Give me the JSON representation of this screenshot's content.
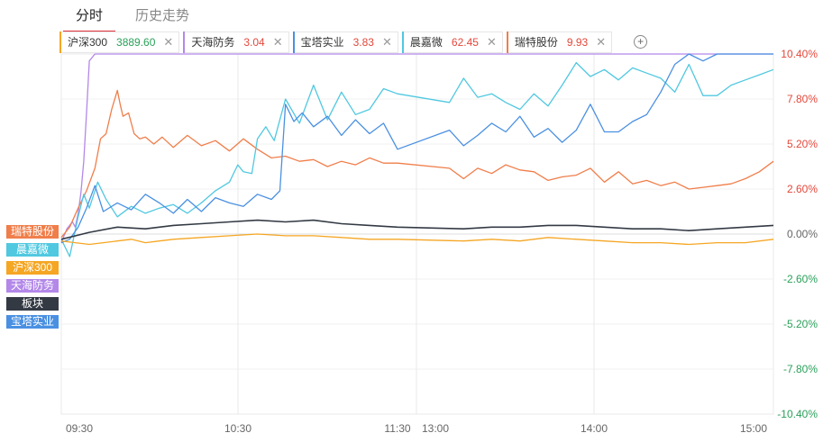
{
  "tabs": [
    {
      "label": "分时",
      "active": true
    },
    {
      "label": "历史走势",
      "active": false
    }
  ],
  "stocks": [
    {
      "name": "沪深300",
      "value": "3889.60",
      "color": "#f5a623",
      "value_color": "#2aa05a"
    },
    {
      "name": "天海防务",
      "value": "3.04",
      "color": "#b388e9",
      "value_color": "#e3473a"
    },
    {
      "name": "宝塔实业",
      "value": "3.83",
      "color": "#4a90e2",
      "value_color": "#e3473a"
    },
    {
      "name": "晨嘉微",
      "value": "62.45",
      "color": "#50c8e0",
      "value_color": "#e3473a"
    },
    {
      "name": "瑞特股份",
      "value": "9.93",
      "color": "#f07e4a",
      "value_color": "#e3473a"
    }
  ],
  "icons": {
    "close": "close-icon",
    "add": "add-circle-icon"
  },
  "legend": [
    {
      "label": "瑞特股份",
      "color": "#f07e4a"
    },
    {
      "label": "晨嘉微",
      "color": "#50c8e0"
    },
    {
      "label": "沪深300",
      "color": "#f5a623"
    },
    {
      "label": "天海防务",
      "color": "#b388e9"
    },
    {
      "label": "板块",
      "color": "#333a44"
    },
    {
      "label": "宝塔实业",
      "color": "#4a90e2"
    }
  ],
  "chart_data": {
    "type": "line",
    "x_ticks": [
      "09:30",
      "10:30",
      "11:30",
      "13:00",
      "14:00",
      "15:00"
    ],
    "y_ticks": [
      "10.40%",
      "7.80%",
      "5.20%",
      "2.60%",
      "0.00%",
      "-2.60%",
      "-5.20%",
      "-7.80%",
      "-10.40%"
    ],
    "ylim": [
      -10.4,
      10.4
    ],
    "xlim": [
      0,
      240
    ],
    "grid": true,
    "series": [
      {
        "name": "天海防务",
        "color": "#b388e9",
        "x": [
          0,
          2,
          4,
          5,
          6,
          7,
          8,
          9,
          10,
          12,
          240
        ],
        "y": [
          -0.5,
          0.3,
          0.7,
          0.4,
          1.2,
          2.4,
          4.2,
          7.0,
          10.0,
          10.4,
          10.4
        ]
      },
      {
        "name": "瑞特股份",
        "color": "#f07e4a",
        "x": [
          0,
          3,
          6,
          9,
          12,
          14,
          16,
          18,
          20,
          21,
          22,
          24,
          26,
          28,
          30,
          33,
          36,
          40,
          45,
          50,
          55,
          60,
          65,
          70,
          75,
          80,
          85,
          90,
          95,
          100,
          105,
          110,
          115,
          120,
          125,
          130,
          135,
          140,
          145,
          150,
          155,
          160,
          165,
          170,
          175,
          180,
          185,
          190,
          195,
          200,
          205,
          210,
          215,
          220,
          225,
          230,
          235,
          240
        ],
        "y": [
          -0.2,
          0.4,
          1.5,
          2.5,
          3.8,
          5.5,
          5.8,
          7.2,
          8.3,
          7.5,
          6.8,
          7.0,
          5.8,
          5.5,
          5.6,
          5.2,
          5.6,
          5.0,
          5.7,
          5.1,
          5.4,
          4.8,
          5.5,
          4.9,
          4.4,
          4.5,
          4.2,
          4.3,
          3.9,
          4.2,
          4.0,
          4.4,
          4.1,
          4.1,
          3.8,
          3.2,
          3.8,
          3.5,
          4.0,
          3.7,
          3.6,
          3.1,
          3.3,
          3.4,
          3.8,
          3.0,
          3.6,
          2.9,
          3.1,
          2.8,
          3.0,
          2.6,
          2.7,
          2.8,
          2.9,
          3.2,
          3.6,
          4.2
        ]
      },
      {
        "name": "晨嘉微",
        "color": "#50c8e0",
        "x": [
          0,
          3,
          6,
          8,
          10,
          13,
          16,
          20,
          25,
          30,
          35,
          40,
          45,
          50,
          55,
          60,
          63,
          65,
          68,
          70,
          73,
          76,
          80,
          85,
          90,
          95,
          100,
          105,
          110,
          115,
          120,
          125,
          130,
          135,
          140,
          145,
          150,
          155,
          160,
          165,
          170,
          175,
          180,
          185,
          190,
          195,
          200,
          205,
          210,
          215,
          220,
          225,
          230,
          235,
          240
        ],
        "y": [
          -0.3,
          -1.3,
          1.0,
          2.3,
          1.5,
          3.0,
          2.0,
          1.0,
          1.6,
          1.2,
          1.5,
          1.7,
          1.2,
          1.8,
          2.5,
          3.0,
          4.0,
          3.6,
          3.5,
          5.5,
          6.2,
          5.4,
          7.8,
          6.4,
          8.6,
          6.6,
          8.2,
          6.9,
          7.2,
          8.4,
          8.1,
          7.6,
          9.0,
          7.9,
          8.1,
          7.6,
          7.2,
          8.1,
          7.4,
          8.6,
          9.9,
          9.1,
          9.5,
          8.9,
          9.6,
          9.3,
          9.0,
          8.2,
          9.8,
          8.0,
          8.0,
          8.6,
          8.9,
          9.2,
          9.5
        ]
      },
      {
        "name": "宝塔实业",
        "color": "#4a90e2",
        "x": [
          0,
          3,
          6,
          9,
          12,
          15,
          20,
          25,
          30,
          35,
          40,
          45,
          50,
          55,
          60,
          65,
          70,
          75,
          78,
          80,
          83,
          86,
          90,
          95,
          100,
          105,
          110,
          115,
          120,
          125,
          130,
          135,
          140,
          145,
          150,
          155,
          160,
          165,
          170,
          175,
          180,
          185,
          190,
          195,
          200,
          205,
          210,
          215,
          220,
          225,
          230,
          235,
          240
        ],
        "y": [
          -0.5,
          -0.3,
          0.4,
          1.5,
          2.8,
          1.3,
          1.8,
          1.4,
          2.3,
          1.8,
          1.2,
          2.0,
          1.3,
          2.1,
          1.8,
          1.6,
          2.3,
          2.0,
          2.5,
          7.5,
          6.5,
          7.0,
          6.2,
          6.8,
          5.7,
          6.6,
          5.8,
          6.4,
          4.9,
          6.0,
          5.1,
          5.7,
          6.4,
          5.9,
          6.8,
          5.6,
          6.1,
          5.3,
          6.0,
          7.5,
          5.9,
          5.9,
          6.5,
          6.9,
          8.2,
          9.8,
          10.4,
          10.0,
          10.4,
          10.4,
          10.4,
          10.4,
          10.4
        ]
      },
      {
        "name": "板块",
        "color": "#333a44",
        "x": [
          0,
          10,
          20,
          30,
          40,
          50,
          60,
          70,
          80,
          90,
          100,
          110,
          120,
          130,
          140,
          150,
          160,
          170,
          180,
          190,
          200,
          210,
          220,
          230,
          240
        ],
        "y": [
          -0.3,
          0.1,
          0.4,
          0.3,
          0.5,
          0.6,
          0.7,
          0.8,
          0.7,
          0.8,
          0.6,
          0.5,
          0.4,
          0.3,
          0.4,
          0.4,
          0.5,
          0.5,
          0.4,
          0.3,
          0.3,
          0.2,
          0.3,
          0.4,
          0.5
        ]
      },
      {
        "name": "沪深300",
        "color": "#f5a623",
        "x": [
          0,
          5,
          10,
          15,
          20,
          25,
          30,
          35,
          40,
          50,
          60,
          70,
          80,
          90,
          100,
          110,
          120,
          130,
          140,
          150,
          160,
          170,
          180,
          190,
          200,
          210,
          220,
          230,
          240
        ],
        "y": [
          -0.4,
          -0.5,
          -0.6,
          -0.5,
          -0.4,
          -0.3,
          -0.5,
          -0.4,
          -0.3,
          -0.2,
          -0.1,
          0.0,
          -0.1,
          -0.1,
          -0.2,
          -0.3,
          -0.3,
          -0.4,
          -0.3,
          -0.4,
          -0.2,
          -0.3,
          -0.4,
          -0.5,
          -0.5,
          -0.6,
          -0.5,
          -0.5,
          -0.3
        ]
      }
    ]
  }
}
